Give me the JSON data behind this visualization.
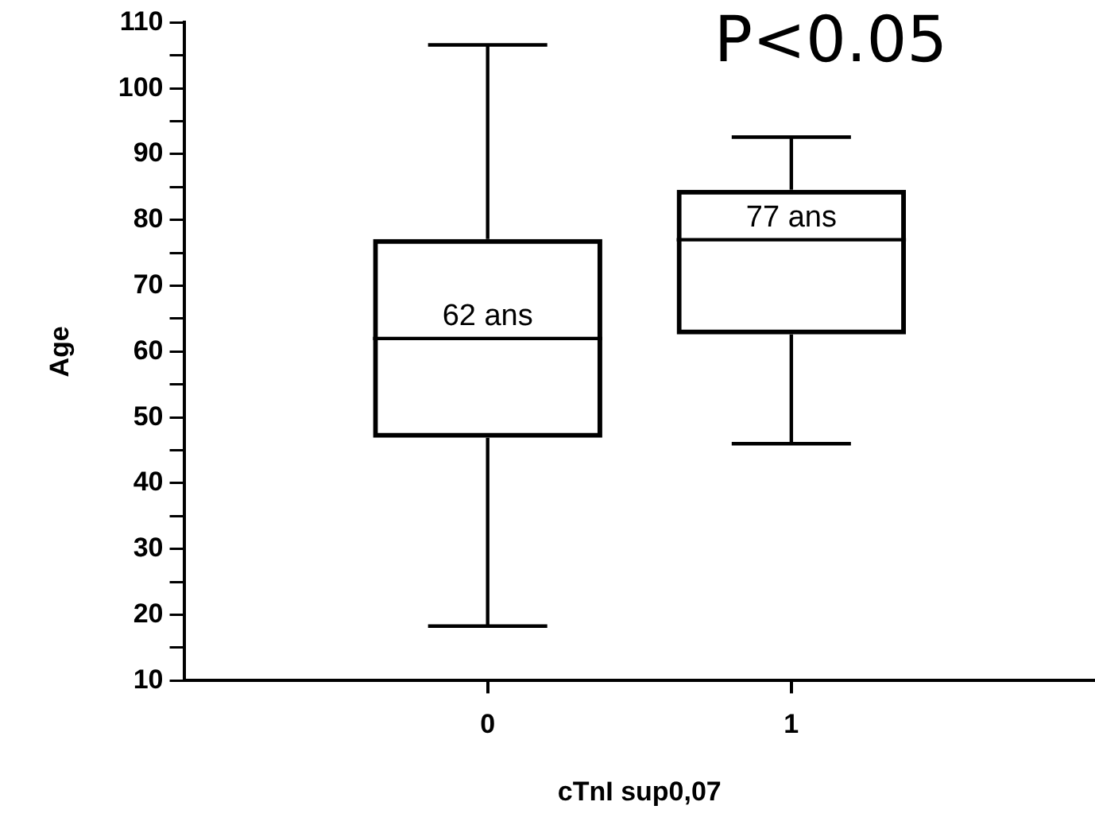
{
  "chart_data": {
    "type": "box",
    "xlabel": "cTnI sup0,07",
    "ylabel": "Age",
    "categories": [
      "0",
      "1"
    ],
    "boxes": [
      {
        "low": 18.3,
        "q1": 46.9,
        "median": 62,
        "q3": 77.1,
        "high": 106.6
      },
      {
        "low": 46,
        "q1": 62.6,
        "median": 77,
        "q3": 84.6,
        "high": 92.6
      }
    ],
    "color": "#000000",
    "ylim": [
      10,
      110
    ],
    "yticks": [
      10,
      {
        "value": 15,
        "label": null
      },
      20,
      {
        "value": 25,
        "label": null
      },
      30,
      {
        "value": 35,
        "label": null
      },
      40,
      {
        "value": 45,
        "label": null
      },
      50,
      {
        "value": 55,
        "label": null
      },
      60,
      {
        "value": 65,
        "label": null
      },
      70,
      {
        "value": 75,
        "label": null
      },
      80,
      {
        "value": 85,
        "label": null
      },
      90,
      {
        "value": 95,
        "label": null
      },
      100,
      {
        "value": 105,
        "label": null
      },
      110
    ],
    "annotations": [
      "62 ans",
      "77 ans",
      "P<0.05"
    ],
    "grid": false,
    "legend": false
  }
}
